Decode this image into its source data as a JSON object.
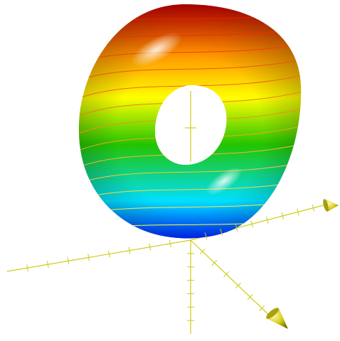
{
  "scene": {
    "object": "torus",
    "colormap": [
      "#d40000",
      "#ff8c00",
      "#ffff00",
      "#22c400",
      "#00e0ff",
      "#0026ff"
    ],
    "contour_lines": {
      "count": 13,
      "top_color": "#e81d00",
      "bottom_color": "#ffff44"
    },
    "axes": {
      "color": "#cccc1a",
      "count": 3,
      "arrowheads": 2
    },
    "background": "#ffffff"
  }
}
